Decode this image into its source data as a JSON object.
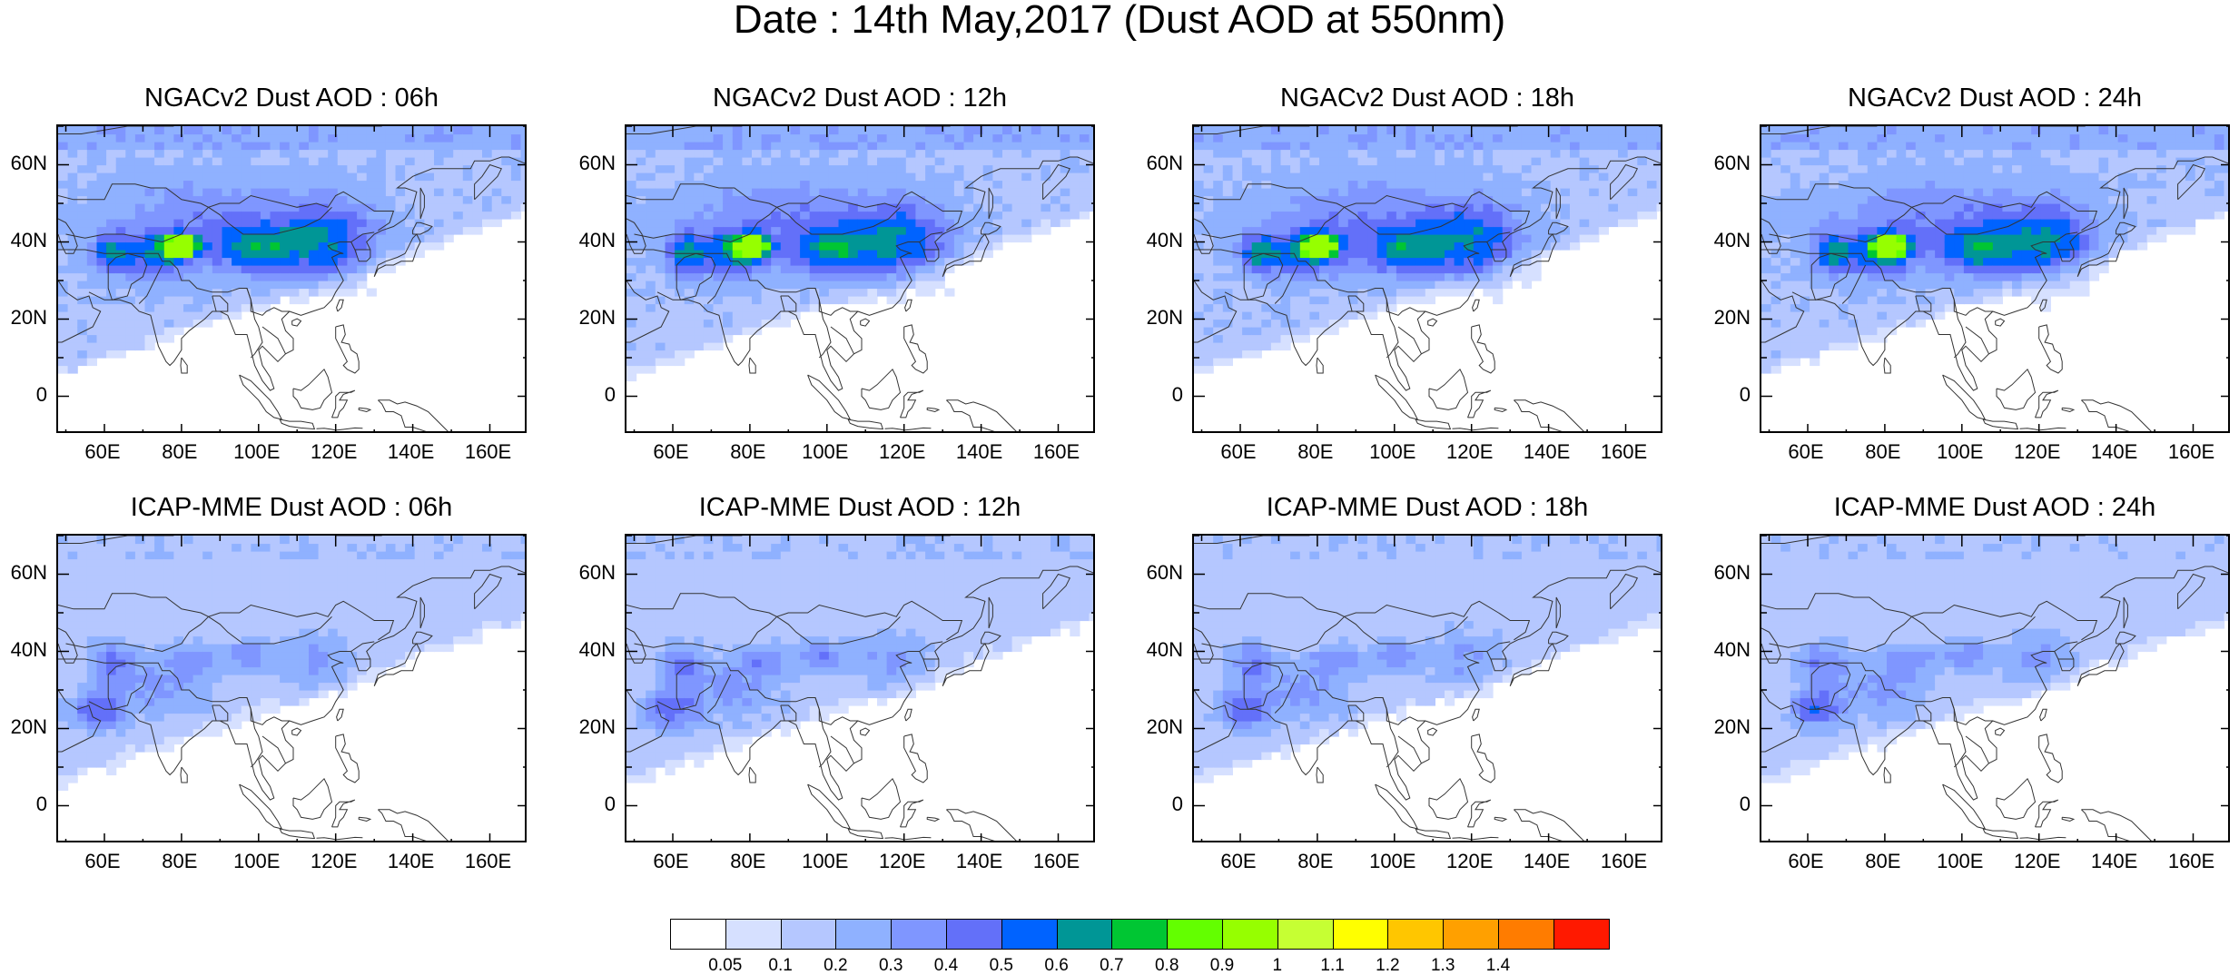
{
  "figure": {
    "title": "Date : 14th May,2017 (Dust AOD at 550nm)"
  },
  "panels": [
    {
      "title": "NGACv2 Dust AOD : 06h",
      "model": "NGACv2",
      "lead": "06h"
    },
    {
      "title": "NGACv2 Dust AOD : 12h",
      "model": "NGACv2",
      "lead": "12h"
    },
    {
      "title": "NGACv2 Dust AOD : 18h",
      "model": "NGACv2",
      "lead": "18h"
    },
    {
      "title": "NGACv2 Dust AOD : 24h",
      "model": "NGACv2",
      "lead": "24h"
    },
    {
      "title": "ICAP-MME Dust AOD : 06h",
      "model": "ICAP-MME",
      "lead": "06h"
    },
    {
      "title": "ICAP-MME Dust AOD : 12h",
      "model": "ICAP-MME",
      "lead": "12h"
    },
    {
      "title": "ICAP-MME Dust AOD : 18h",
      "model": "ICAP-MME",
      "lead": "18h"
    },
    {
      "title": "ICAP-MME Dust AOD : 24h",
      "model": "ICAP-MME",
      "lead": "24h"
    }
  ],
  "axes": {
    "lon_range": [
      48,
      170
    ],
    "lat_range": [
      -10,
      70
    ],
    "x_ticks": [
      {
        "value": 60,
        "label": "60E"
      },
      {
        "value": 80,
        "label": "80E"
      },
      {
        "value": 100,
        "label": "100E"
      },
      {
        "value": 120,
        "label": "120E"
      },
      {
        "value": 140,
        "label": "140E"
      },
      {
        "value": 160,
        "label": "160E"
      }
    ],
    "y_ticks": [
      {
        "value": 60,
        "label": "60N"
      },
      {
        "value": 40,
        "label": "40N"
      },
      {
        "value": 20,
        "label": "20N"
      },
      {
        "value": 0,
        "label": "0"
      }
    ]
  },
  "colorbar": {
    "levels": [
      "0.05",
      "0.1",
      "0.2",
      "0.3",
      "0.4",
      "0.5",
      "0.6",
      "0.7",
      "0.8",
      "0.9",
      "1",
      "1.1",
      "1.2",
      "1.3",
      "1.4"
    ],
    "colors": [
      "#ffffff",
      "#d6e0ff",
      "#b5c7ff",
      "#8fb1ff",
      "#7f96ff",
      "#6370f9",
      "#0063ff",
      "#009696",
      "#00c633",
      "#63ff00",
      "#96ff00",
      "#c6ff33",
      "#ffff00",
      "#ffc600",
      "#ffa000",
      "#ff7c00",
      "#ff1900"
    ]
  },
  "map_fill": {
    "color_levels": [
      "#ffffff",
      "#d6e0ff",
      "#b5c7ff",
      "#8fb1ff",
      "#7f96ff",
      "#6370f9",
      "#0063ff",
      "#009696",
      "#00c633",
      "#63ff00",
      "#96ff00"
    ]
  }
}
